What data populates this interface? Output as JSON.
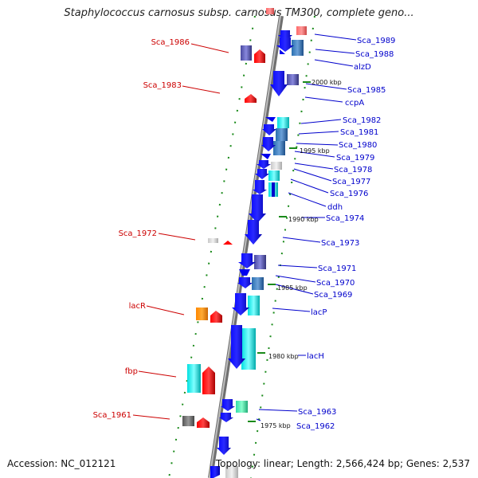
{
  "title": "Staphylococcus carnosus subsp. carnosus TM300, complete geno...",
  "accession": "Accession: NC_012121",
  "topology": "Topology: linear; Length: 2,566,424 bp; Genes: 2,537",
  "colors": {
    "forward_label": "#0000cc",
    "reverse_label": "#cc0000",
    "axis": "#9a9a9a",
    "tick": "#1a8a1a"
  },
  "kbp_marks": [
    "2000 kbp",
    "1995 kbp",
    "1990 kbp",
    "1985 kbp",
    "1980 kbp",
    "1975 kbp"
  ],
  "right_labels": [
    "Sca_1989",
    "Sca_1988",
    "alzD",
    "Sca_1985",
    "ccpA",
    "Sca_1982",
    "Sca_1981",
    "Sca_1980",
    "Sca_1979",
    "Sca_1978",
    "Sca_1977",
    "Sca_1976",
    "ddh",
    "Sca_1974",
    "Sca_1973",
    "Sca_1971",
    "Sca_1970",
    "Sca_1969",
    "lacP",
    "lacH",
    "Sca_1963",
    "Sca_1962"
  ],
  "left_labels": [
    "Sca_1986",
    "Sca_1983",
    "Sca_1972",
    "lacR",
    "fbp",
    "Sca_1961"
  ]
}
